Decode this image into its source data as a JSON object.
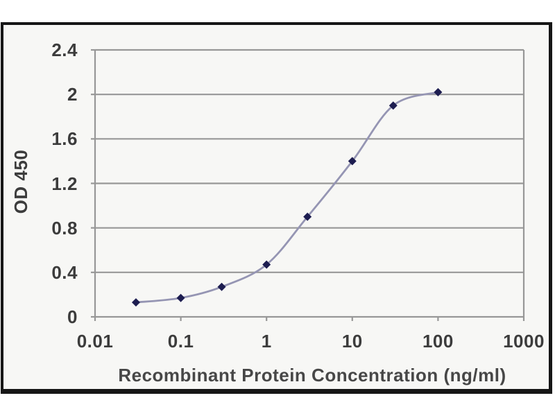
{
  "chart_data": {
    "type": "line",
    "title": "",
    "xlabel": "Recombinant Protein Concentration (ng/ml)",
    "ylabel": "OD 450",
    "x_scale": "log10",
    "xlim": [
      0.01,
      1000
    ],
    "ylim": [
      0,
      2.4
    ],
    "x_ticks": [
      "0.01",
      "0.1",
      "1",
      "10",
      "100",
      "1000"
    ],
    "y_ticks": [
      "0",
      "0.4",
      "0.8",
      "1.2",
      "1.6",
      "2",
      "2.4"
    ],
    "grid": "horizontal",
    "legend": "none",
    "marker": "diamond",
    "series": [
      {
        "name": "OD450",
        "x": [
          0.03,
          0.1,
          0.3,
          1,
          3,
          10,
          30,
          100
        ],
        "y": [
          0.13,
          0.17,
          0.27,
          0.47,
          0.9,
          1.4,
          1.9,
          2.02
        ]
      }
    ],
    "colors": {
      "line": "#9595b3",
      "marker": "#1d1d50",
      "grid": "#979797",
      "axis": "#979797",
      "tick_text": "#3c3c3c",
      "label_text": "#474747",
      "frame_border": "#161616",
      "frame_bg": "#f7f7f5",
      "page_bg": "#ffffff"
    }
  }
}
